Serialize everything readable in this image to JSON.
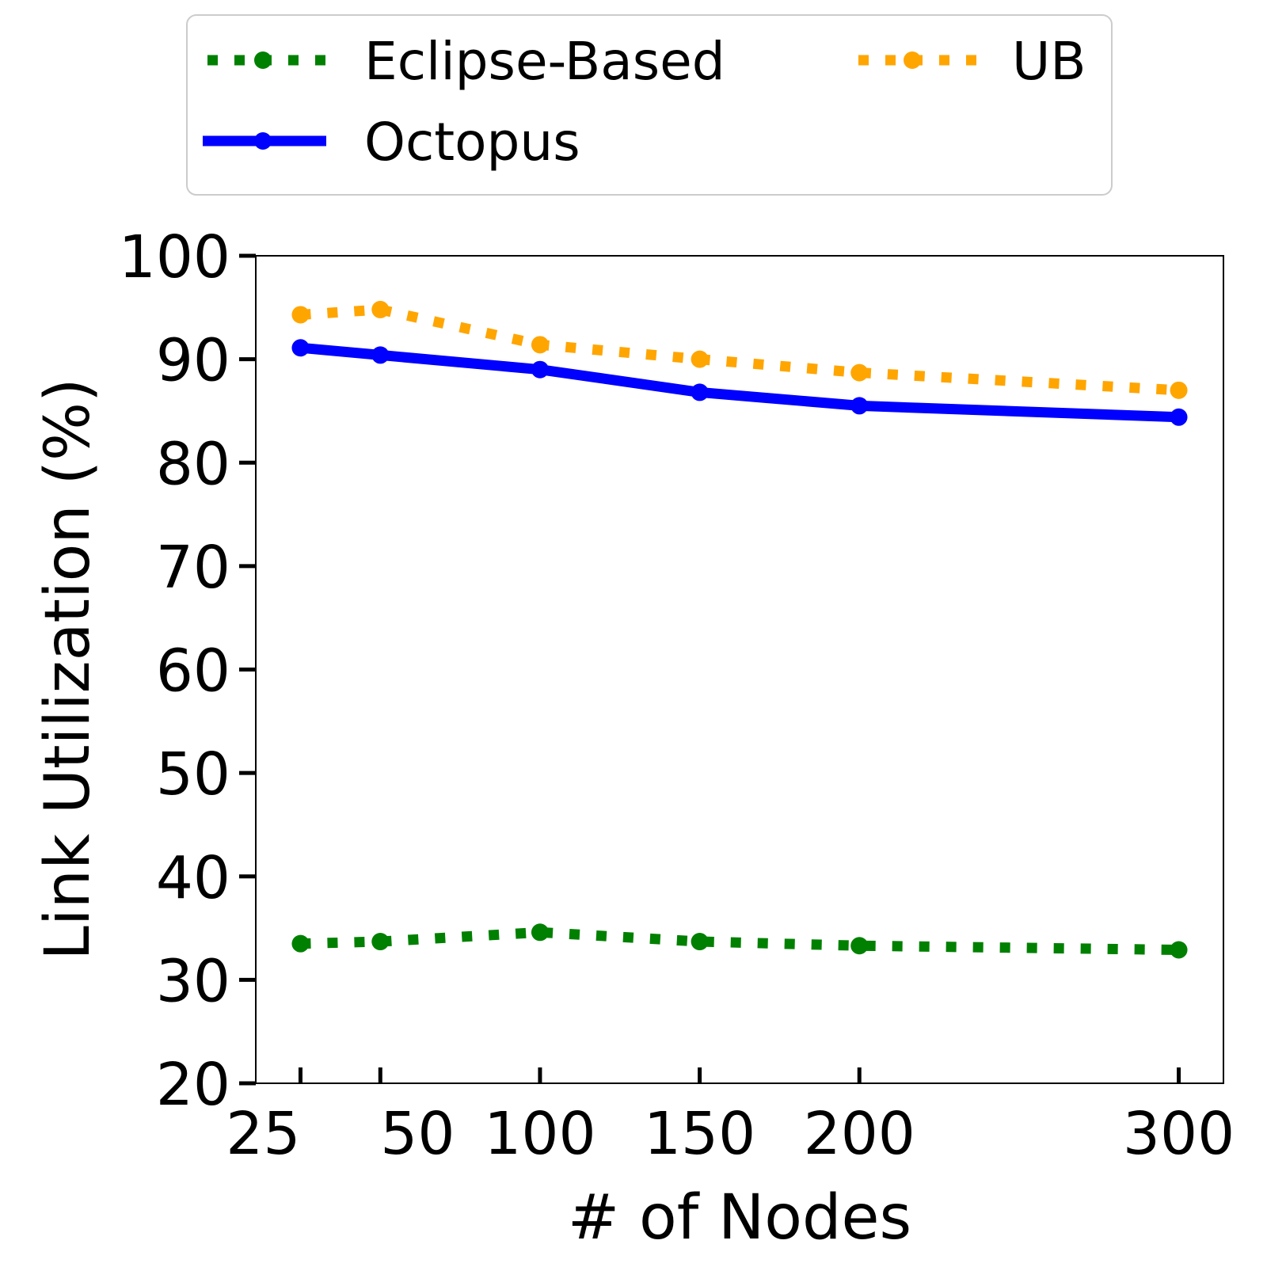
{
  "chart_data": {
    "type": "line",
    "title": "",
    "xlabel": "# of Nodes",
    "ylabel": "Link Utilization (%)",
    "x": [
      25,
      50,
      100,
      150,
      200,
      300
    ],
    "xticks": [
      "25",
      "50",
      "100",
      "150",
      "200",
      "300"
    ],
    "xlim": [
      11,
      314
    ],
    "ylim": [
      20,
      100
    ],
    "yticks": [
      "20",
      "30",
      "40",
      "50",
      "60",
      "70",
      "80",
      "90",
      "100"
    ],
    "grid": false,
    "legend_position": "top",
    "series": [
      {
        "name": "Eclipse-Based",
        "color": "#008000",
        "style": "dotted",
        "values": [
          33.5,
          33.7,
          34.6,
          33.7,
          33.3,
          32.9
        ]
      },
      {
        "name": "Octopus",
        "color": "#0000ff",
        "style": "solid",
        "values": [
          91.1,
          90.4,
          89.0,
          86.8,
          85.5,
          84.4
        ]
      },
      {
        "name": "UB",
        "color": "#ffa500",
        "style": "dotted",
        "values": [
          94.3,
          94.8,
          91.4,
          90.0,
          88.7,
          87.0
        ]
      }
    ]
  }
}
